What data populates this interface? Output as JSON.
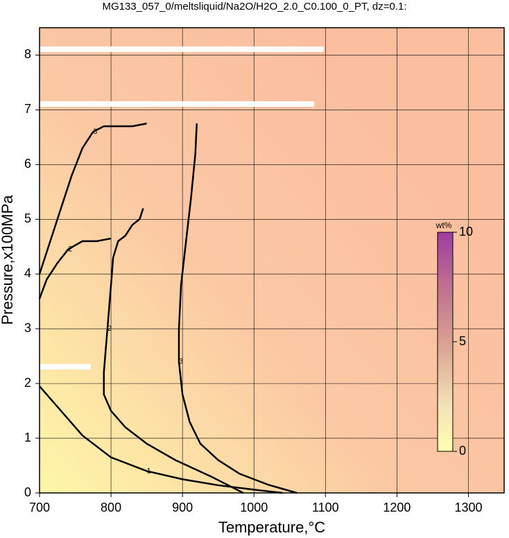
{
  "chart_data": {
    "type": "contour",
    "title": "MG133_057_0/meltsliquid/Na2O/H2O_2.0_C0.100_0_PT, dz=0.1:",
    "x_label": "Temperature,°C",
    "y_label": "Pressure,x100MPa",
    "xlim": [
      700,
      1350
    ],
    "ylim": [
      0,
      8.5
    ],
    "xticks": [
      700,
      800,
      900,
      1000,
      1100,
      1200,
      1300
    ],
    "yticks": [
      0,
      1,
      2,
      3,
      4,
      5,
      6,
      7,
      8
    ],
    "grid": true,
    "contours": [
      {
        "level": 1,
        "x": [
          700,
          730,
          760,
          800,
          850,
          900,
          950,
          1000,
          1040
        ],
        "y": [
          1.95,
          1.5,
          1.05,
          0.65,
          0.4,
          0.25,
          0.14,
          0.06,
          0
        ]
      },
      {
        "level": 2,
        "x": [
          985,
          940,
          890,
          850,
          820,
          800,
          790,
          790,
          795,
          800,
          803,
          810,
          820,
          830,
          840,
          845
        ],
        "y": [
          0,
          0.3,
          0.6,
          0.9,
          1.2,
          1.5,
          1.8,
          2.2,
          3.0,
          3.8,
          4.3,
          4.6,
          4.7,
          4.9,
          5.0,
          5.2
        ]
      },
      {
        "level": 2,
        "x": [
          700,
          710,
          725,
          740,
          760,
          780,
          800
        ],
        "y": [
          3.55,
          3.9,
          4.2,
          4.45,
          4.6,
          4.6,
          4.65
        ]
      },
      {
        "level": 3,
        "x": [
          1060,
          1020,
          980,
          950,
          925,
          910,
          900,
          895,
          895,
          898,
          905,
          912,
          918,
          920
        ],
        "y": [
          0,
          0.15,
          0.35,
          0.6,
          0.9,
          1.3,
          1.8,
          2.4,
          3.0,
          3.8,
          4.6,
          5.4,
          6.2,
          6.75
        ]
      },
      {
        "level": 3,
        "x": [
          700,
          715,
          730,
          745,
          760,
          775,
          790,
          810,
          830,
          850
        ],
        "y": [
          4.0,
          4.6,
          5.2,
          5.8,
          6.3,
          6.6,
          6.7,
          6.7,
          6.7,
          6.75
        ]
      }
    ],
    "colorbar": {
      "label": "wt%",
      "lim": [
        0,
        10
      ],
      "ticks": [
        0,
        5,
        10
      ]
    }
  }
}
